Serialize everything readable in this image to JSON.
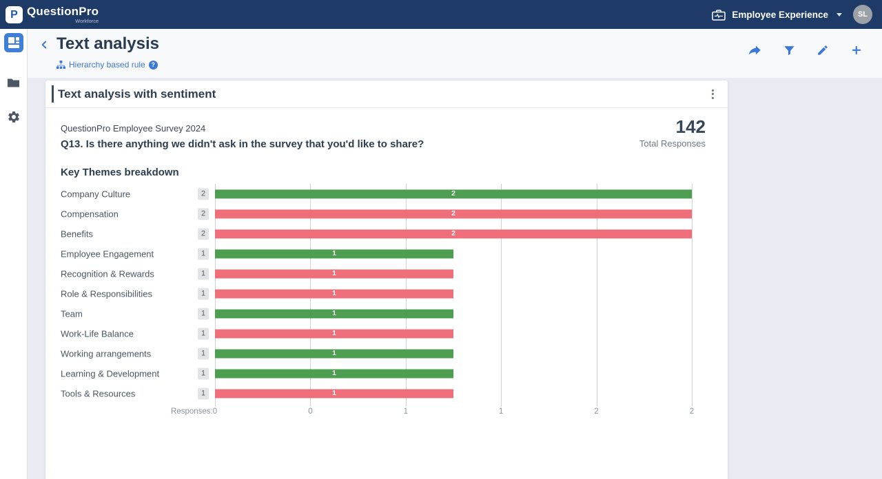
{
  "topbar": {
    "brand": "QuestionPro",
    "brand_sub": "Workforce",
    "logo_glyph": "P",
    "workspace_label": "Employee Experience",
    "avatar_initials": "SL"
  },
  "sidebar": {
    "items": [
      {
        "name": "dashboards",
        "icon": "dashboard-grid-icon",
        "active": true
      },
      {
        "name": "folders",
        "icon": "folder-icon",
        "active": false
      },
      {
        "name": "settings",
        "icon": "gear-icon",
        "active": false
      }
    ]
  },
  "header": {
    "back_icon": "chevron-left-icon",
    "title": "Text analysis",
    "rule_label": "Hierarchy based rule",
    "rule_icon": "hierarchy-icon",
    "help_icon": "question-mark-icon",
    "help_glyph": "?",
    "actions": [
      "share-icon",
      "filter-icon",
      "edit-pencil-icon",
      "plus-icon"
    ]
  },
  "card": {
    "title": "Text analysis with sentiment",
    "menu_icon": "kebab-menu-icon",
    "survey_name": "QuestionPro Employee Survey 2024",
    "total_responses_value": "142",
    "total_responses_label": "Total Responses",
    "question": "Q13. Is there anything we didn't ask in the survey that you'd like to share?",
    "section_title": "Key Themes breakdown"
  },
  "chart_data": {
    "type": "bar",
    "orientation": "horizontal",
    "title": "Key Themes breakdown",
    "xlabel": "Responses:",
    "xlim": [
      0,
      2
    ],
    "grid": true,
    "tick_positions_pct": [
      0,
      20,
      40,
      60,
      80,
      100
    ],
    "tick_labels": [
      "0",
      "0",
      "1",
      "1",
      "2",
      "2"
    ],
    "colors": {
      "positive": "#4d9e50",
      "negative": "#ee6f7a"
    },
    "rows": [
      {
        "label": "Company Culture",
        "value": 2,
        "sentiment": "positive"
      },
      {
        "label": "Compensation",
        "value": 2,
        "sentiment": "negative"
      },
      {
        "label": "Benefits",
        "value": 2,
        "sentiment": "negative"
      },
      {
        "label": "Employee Engagement",
        "value": 1,
        "sentiment": "positive"
      },
      {
        "label": "Recognition & Rewards",
        "value": 1,
        "sentiment": "negative"
      },
      {
        "label": "Role & Responsibilities",
        "value": 1,
        "sentiment": "negative"
      },
      {
        "label": "Team",
        "value": 1,
        "sentiment": "positive"
      },
      {
        "label": "Work-Life Balance",
        "value": 1,
        "sentiment": "negative"
      },
      {
        "label": "Working arrangements",
        "value": 1,
        "sentiment": "positive"
      },
      {
        "label": "Learning & Development",
        "value": 1,
        "sentiment": "positive"
      },
      {
        "label": "Tools & Resources",
        "value": 1,
        "sentiment": "negative"
      }
    ]
  }
}
